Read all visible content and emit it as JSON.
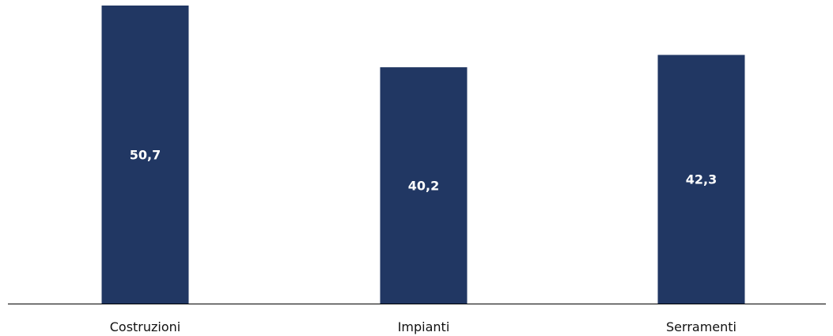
{
  "chart_data": {
    "type": "bar",
    "categories": [
      "Costruzioni",
      "Impianti",
      "Serramenti"
    ],
    "values": [
      50.7,
      40.2,
      42.3
    ],
    "value_labels": [
      "50,7",
      "40,2",
      "42,3"
    ],
    "title": "",
    "xlabel": "",
    "ylabel": "",
    "ylim": [
      0,
      50.7
    ],
    "grid": false,
    "legend": "none",
    "colors": {
      "bar": "#213763",
      "axis": "#000000",
      "value_label": "#ffffff",
      "category_label": "#111111"
    }
  }
}
